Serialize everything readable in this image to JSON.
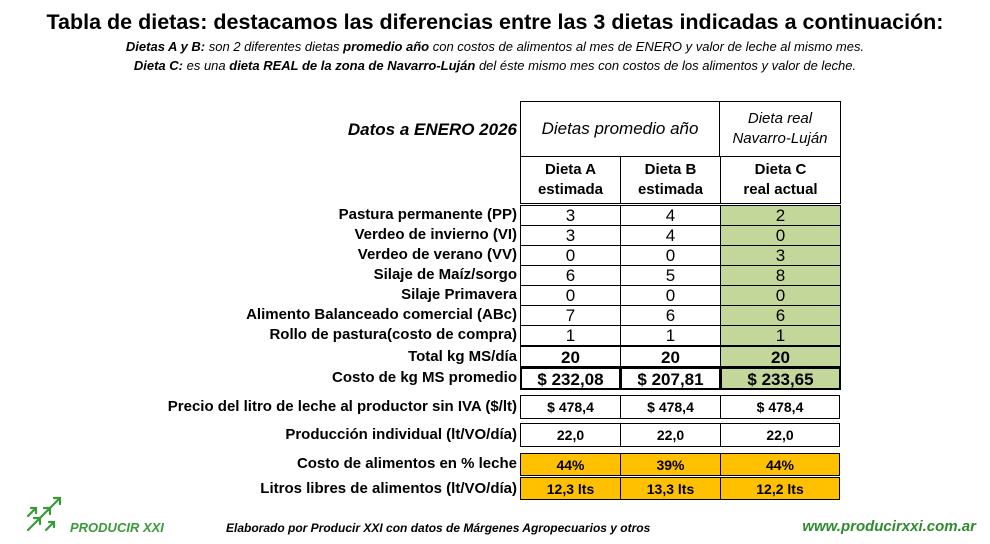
{
  "title": "Tabla de dietas: destacamos las diferencias entre las 3 dietas indicadas a continuación:",
  "subtitle1": {
    "a": "Dietas A y B:",
    "b": " son 2 diferentes dietas ",
    "c": "promedio año",
    "d": " con costos de alimentos al mes de ENERO y valor de leche al mismo mes."
  },
  "subtitle2": {
    "a": "Dieta C:",
    "b": " es una ",
    "c": "dieta REAL de la zona de Navarro-Luján",
    "d": " del éste mismo mes con costos de los alimentos y valor de leche."
  },
  "table": {
    "date_label": "Datos a ENERO 2026",
    "group_avg": "Dietas promedio año",
    "group_real_1": "Dieta real",
    "group_real_2": "Navarro-Luján",
    "columns": [
      {
        "line1": "Dieta A",
        "line2": "estimada"
      },
      {
        "line1": "Dieta B",
        "line2": "estimada"
      },
      {
        "line1": "Dieta C",
        "line2": "real actual"
      }
    ],
    "rows": [
      {
        "label": "Pastura permanente (PP)",
        "values": [
          "3",
          "4",
          "2"
        ]
      },
      {
        "label": "Verdeo de invierno (VI)",
        "values": [
          "3",
          "4",
          "0"
        ]
      },
      {
        "label": "Verdeo de verano (VV)",
        "values": [
          "0",
          "0",
          "3"
        ]
      },
      {
        "label": "Silaje de Maíz/sorgo",
        "values": [
          "6",
          "5",
          "8"
        ]
      },
      {
        "label": "Silaje Primavera",
        "values": [
          "0",
          "0",
          "0"
        ]
      },
      {
        "label": "Alimento Balanceado comercial (ABc)",
        "values": [
          "7",
          "6",
          "6"
        ]
      },
      {
        "label": "Rollo de pastura(costo de compra)",
        "values": [
          "1",
          "1",
          "1"
        ]
      }
    ],
    "total": {
      "label": "Total kg MS/día",
      "values": [
        "20",
        "20",
        "20"
      ]
    },
    "cost": {
      "label": "Costo de kg MS promedio",
      "values": [
        "$ 232,08",
        "$ 207,81",
        "$ 233,65"
      ]
    }
  },
  "summary": [
    {
      "label": "Precio del litro de leche al productor sin IVA ($/lt)",
      "values": [
        "$ 478,4",
        "$ 478,4",
        "$ 478,4"
      ],
      "highlight": false
    },
    {
      "label": "Producción individual (lt/VO/día)",
      "values": [
        "22,0",
        "22,0",
        "22,0"
      ],
      "highlight": false
    },
    {
      "label": "Costo de alimentos en % leche",
      "values": [
        "44%",
        "39%",
        "44%"
      ],
      "highlight": true
    },
    {
      "label": "Litros libres de alimentos (lt/VO/día)",
      "values": [
        "12,3 lts",
        "13,3 lts",
        "12,2 lts"
      ],
      "highlight": true
    }
  ],
  "colors": {
    "green": "#c4d79b",
    "orange": "#ffc000",
    "brand": "#3a9a3a"
  },
  "logo_text": "PRODUCIR XXI",
  "footer": "Elaborado por Producir XXI con datos de Márgenes Agropecuarios y otros",
  "website": "www.producirxxi.com.ar"
}
